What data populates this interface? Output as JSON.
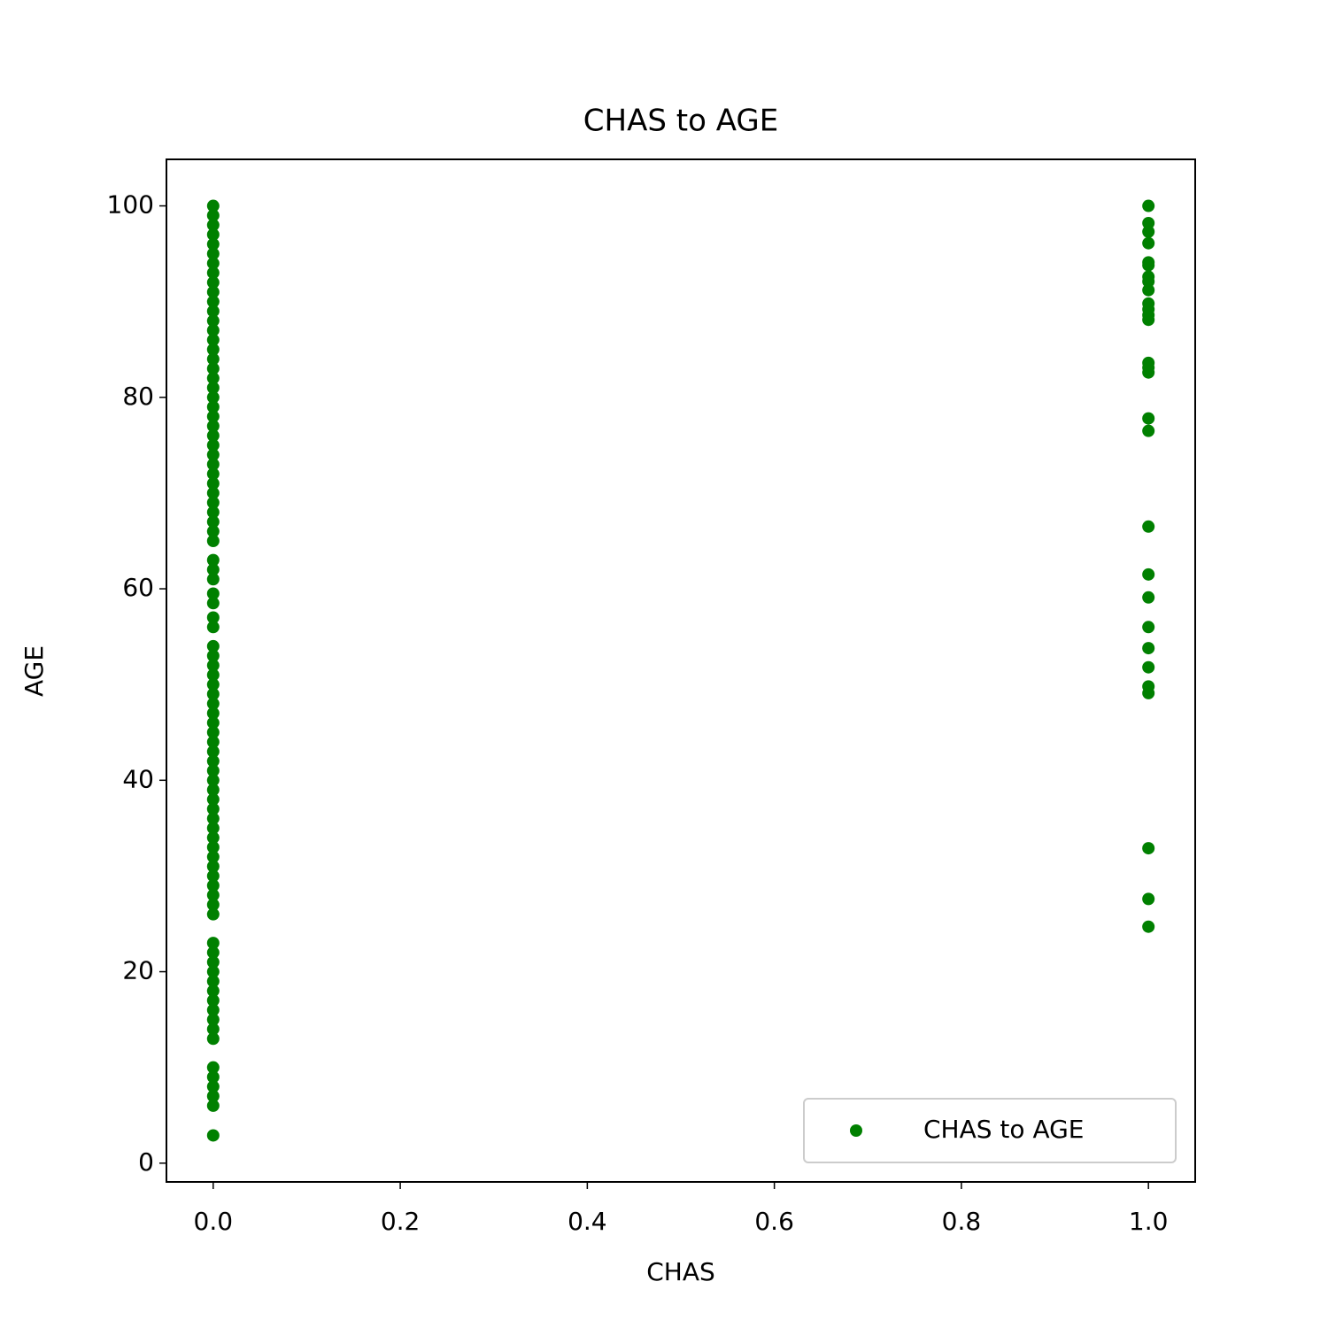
{
  "chart_data": {
    "type": "scatter",
    "title": "CHAS to AGE",
    "x_label": "CHAS",
    "y_label": "AGE",
    "xlim": [
      -0.05,
      1.05
    ],
    "ylim": [
      -1.96,
      104.86
    ],
    "xticks": [
      {
        "value": 0,
        "label": "0.0"
      },
      0.2,
      0.4,
      0.6,
      0.8,
      {
        "value": 1,
        "label": "1.0"
      }
    ],
    "yticks": [
      0,
      20,
      40,
      60,
      80,
      100
    ],
    "grid": false,
    "legend": "lower right",
    "series": [
      {
        "name": "CHAS to AGE",
        "color": "#008000",
        "x": [
          0,
          0,
          0,
          0,
          0,
          0,
          0,
          0,
          0,
          0,
          0,
          0,
          0,
          0,
          0,
          0,
          0,
          0,
          0,
          0,
          0,
          0,
          0,
          0,
          0,
          0,
          0,
          0,
          0,
          0,
          0,
          0,
          0,
          0,
          0,
          0,
          0,
          0,
          0,
          0,
          0,
          0,
          0,
          0,
          0,
          0,
          0,
          0,
          0,
          0,
          0,
          0,
          0,
          0,
          0,
          0,
          0,
          0,
          0,
          0,
          0,
          0,
          0,
          0,
          0,
          0,
          0,
          0,
          0,
          0,
          0,
          0,
          0,
          0,
          0,
          0,
          0,
          0,
          0,
          0,
          0,
          0,
          0,
          0,
          0,
          0,
          0,
          0,
          0,
          1,
          1,
          1,
          1,
          1,
          1,
          1,
          1,
          1,
          1,
          1,
          1,
          1,
          1,
          1,
          1,
          1,
          1,
          1,
          1,
          1,
          1,
          1,
          1,
          1,
          1,
          1,
          1,
          1
        ],
        "values": [
          100,
          99,
          98,
          97,
          96,
          95,
          94,
          93,
          92,
          91,
          90,
          89,
          88,
          87,
          86,
          85,
          84,
          83,
          82,
          81,
          80,
          79,
          78,
          77,
          76,
          75,
          74,
          73,
          72,
          71,
          70,
          69,
          68,
          67,
          66,
          65,
          63,
          62,
          61,
          59.5,
          58.5,
          57,
          56,
          54,
          53,
          52,
          51,
          50,
          49,
          48,
          47,
          46,
          45,
          44,
          43,
          42,
          41,
          40,
          39,
          38,
          37,
          36,
          35,
          34,
          33,
          32,
          31,
          30,
          29,
          28,
          27,
          26,
          23,
          22,
          21,
          20,
          19,
          18,
          17,
          16,
          15,
          14,
          13,
          10,
          9,
          8,
          7,
          6,
          2.9,
          100,
          98.2,
          97.3,
          96.1,
          94.1,
          93.8,
          92.6,
          92.1,
          91.2,
          89.8,
          89.2,
          88.6,
          88.1,
          83.6,
          83.1,
          82.6,
          77.8,
          76.5,
          66.5,
          61.5,
          59.1,
          56,
          53.8,
          51.8,
          49.8,
          49.1,
          32.9,
          27.6,
          24.7
        ]
      }
    ]
  }
}
